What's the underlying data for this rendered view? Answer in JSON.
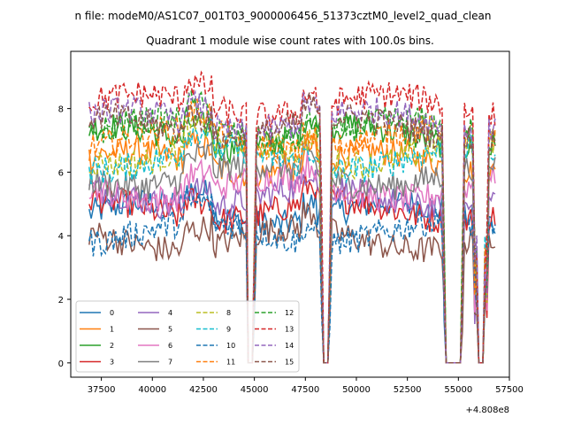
{
  "chart_data": {
    "type": "line",
    "suptitle": "n file: modeM0/AS1C07_001T03_9000006456_51373cztM0_level2_quad_clean",
    "title": "Quadrant 1 module wise count rates with 100.0s bins.",
    "xlabel": "",
    "ylabel": "",
    "x_offset_label": "+4.808e8",
    "xlim": [
      36000,
      57500
    ],
    "ylim": [
      -0.45,
      9.8
    ],
    "x_ticks": [
      37500,
      40000,
      42500,
      45000,
      47500,
      50000,
      52500,
      55000,
      57500
    ],
    "x_tick_labels": [
      "37500",
      "40000",
      "42500",
      "45000",
      "47500",
      "50000",
      "52500",
      "55000",
      "57500"
    ],
    "y_ticks": [
      0,
      2,
      4,
      6,
      8
    ],
    "y_tick_labels": [
      "0",
      "2",
      "4",
      "6",
      "8"
    ],
    "x_start": 36900,
    "x_end": 56800,
    "bin": 100,
    "gaps": [
      {
        "dip": 44650,
        "start": 44700,
        "end": 44950,
        "recover": 45050
      },
      {
        "dip": 48250,
        "start": 48350,
        "end": 48650,
        "recover": 48750
      },
      {
        "dip": 54250,
        "start": 54400,
        "end": 55100,
        "recover": 55250
      },
      {
        "dip": 55800,
        "start": 55950,
        "end": 56250,
        "recover": 56400
      }
    ],
    "legend_position": "lower-left",
    "series": [
      {
        "name": "0",
        "level": 4.7,
        "style": "solid",
        "color": "#1f77b4"
      },
      {
        "name": "1",
        "level": 6.3,
        "style": "solid",
        "color": "#ff7f0e"
      },
      {
        "name": "2",
        "level": 7.1,
        "style": "solid",
        "color": "#2ca02c"
      },
      {
        "name": "3",
        "level": 4.8,
        "style": "solid",
        "color": "#d62728"
      },
      {
        "name": "4",
        "level": 5.2,
        "style": "solid",
        "color": "#9467bd"
      },
      {
        "name": "5",
        "level": 3.9,
        "style": "solid",
        "color": "#8c564b"
      },
      {
        "name": "6",
        "level": 5.5,
        "style": "solid",
        "color": "#e377c2"
      },
      {
        "name": "7",
        "level": 5.9,
        "style": "solid",
        "color": "#7f7f7f"
      },
      {
        "name": "8",
        "level": 6.6,
        "style": "dashed",
        "color": "#bcbd22"
      },
      {
        "name": "9",
        "level": 6.4,
        "style": "dashed",
        "color": "#17becf"
      },
      {
        "name": "10",
        "level": 4.1,
        "style": "dashed",
        "color": "#1f77b4"
      },
      {
        "name": "11",
        "level": 7.0,
        "style": "dashed",
        "color": "#ff7f0e"
      },
      {
        "name": "12",
        "level": 7.3,
        "style": "dashed",
        "color": "#2ca02c"
      },
      {
        "name": "13",
        "level": 8.1,
        "style": "dashed",
        "color": "#d62728"
      },
      {
        "name": "14",
        "level": 7.6,
        "style": "dashed",
        "color": "#9467bd"
      },
      {
        "name": "15",
        "level": 7.4,
        "style": "dashed",
        "color": "#8c564b"
      }
    ]
  }
}
